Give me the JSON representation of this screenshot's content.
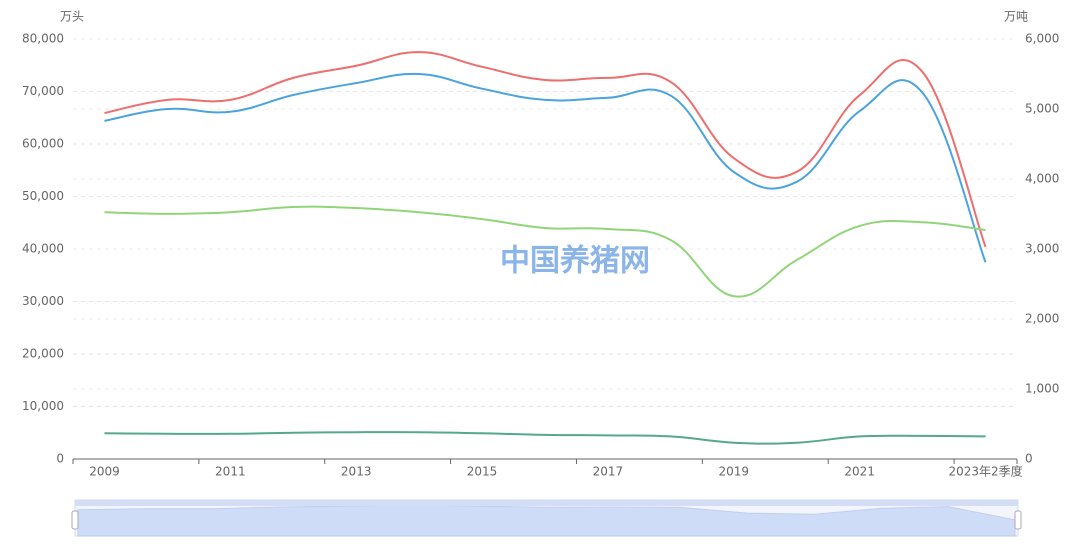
{
  "chart_data": {
    "type": "line",
    "yname": "万头",
    "y2name": "万吨",
    "watermark": "中国养猪网",
    "categories": [
      "2009",
      null,
      "2011",
      null,
      "2013",
      null,
      "2015",
      null,
      "2017",
      null,
      "2019",
      null,
      "2021",
      null,
      "2023年2季度"
    ],
    "ylim": [
      0,
      80000
    ],
    "yticks": [
      0,
      {
        "value": 10000,
        "label": "10,000"
      },
      {
        "value": 20000,
        "label": "20,000"
      },
      {
        "value": 30000,
        "label": "30,000"
      },
      {
        "value": 40000,
        "label": "40,000"
      },
      {
        "value": 50000,
        "label": "50,000"
      },
      {
        "value": 60000,
        "label": "60,000"
      },
      {
        "value": 70000,
        "label": "70,000"
      },
      {
        "value": 80000,
        "label": "80,000"
      }
    ],
    "y2lim": [
      0,
      6000
    ],
    "y2ticks": [
      0,
      {
        "value": 1000,
        "label": "1,000"
      },
      {
        "value": 2000,
        "label": "2,000"
      },
      {
        "value": 3000,
        "label": "3,000"
      },
      {
        "value": 4000,
        "label": "4,000"
      },
      {
        "value": 5000,
        "label": "5,000"
      },
      {
        "value": 6000,
        "label": "6,000"
      }
    ],
    "grid": true,
    "series": [
      {
        "color": "#ee6e6e",
        "values": [
          65900,
          68400,
          68400,
          72600,
          74900,
          77500,
          74700,
          72200,
          72600,
          71800,
          57300,
          54700,
          69300,
          73700,
          40400
        ]
      },
      {
        "color": "#4aa3df",
        "axis": "y2",
        "values": [
          4830,
          5000,
          4960,
          5200,
          5370,
          5500,
          5290,
          5130,
          5160,
          5190,
          4100,
          3960,
          4970,
          5230,
          2810
        ]
      },
      {
        "color": "#91d57a",
        "values": [
          47000,
          46700,
          47000,
          48000,
          47800,
          47000,
          45700,
          44000,
          43800,
          41700,
          31000,
          37900,
          44400,
          45100,
          43600
        ]
      },
      {
        "color": "#55a88e",
        "values": [
          4900,
          4800,
          4800,
          5000,
          5100,
          5100,
          4900,
          4600,
          4500,
          4300,
          3100,
          3100,
          4300,
          4400,
          4300
        ]
      }
    ]
  }
}
